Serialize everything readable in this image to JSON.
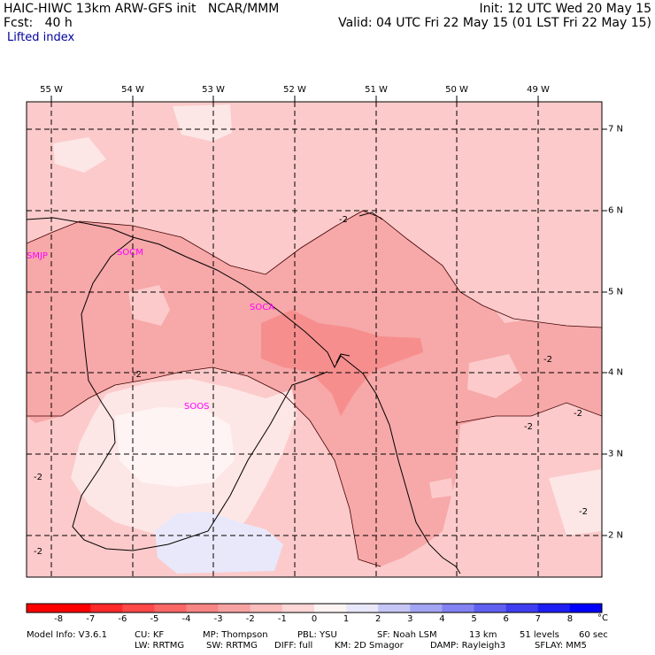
{
  "header": {
    "line1_left": "HAIC-HIWC 13km ARW-GFS init   NCAR/MMM",
    "line2_left": "Fcst:   40 h",
    "line1_right": "Init: 12 UTC Wed 20 May 15",
    "line2_right": "Valid: 04 UTC Fri 22 May 15 (01 LST Fri 22 May 15)",
    "field_name": "Lifted index"
  },
  "map": {
    "longitude_labels": [
      "55 W",
      "54 W",
      "53 W",
      "52 W",
      "51 W",
      "50 W",
      "49 W"
    ],
    "latitude_labels": [
      "7 N",
      "6 N",
      "5 N",
      "4 N",
      "3 N",
      "2 N"
    ],
    "stations": [
      "SMJP",
      "SOCM",
      "SOCA",
      "SOOS"
    ],
    "contour_label": "-2",
    "colors": {
      "minus3_to_minus2": "#f7a8a8",
      "minus2_to_minus1": "#fccaca",
      "minus1_to_0": "#fde6e6",
      "zero_to_1": "#fff4f4",
      "one_to_2": "#e8e8fa",
      "boundary": "#000000",
      "station_label": "#ff00ff"
    }
  },
  "colorbar": {
    "tick_labels": [
      "-8",
      "-7",
      "-6",
      "-5",
      "-4",
      "-3",
      "-2",
      "-1",
      "0",
      "1",
      "2",
      "3",
      "4",
      "5",
      "6",
      "7",
      "8"
    ],
    "unit": "°C",
    "colors": [
      "#ff0000",
      "#ff2a2a",
      "#ff4848",
      "#fb6767",
      "#f78585",
      "#f7a2a2",
      "#fbbcbc",
      "#fdd6d6",
      "#fff4f4",
      "#e8e8fa",
      "#c6c6f6",
      "#a4a4f4",
      "#8282f2",
      "#6060f0",
      "#3e3ef0",
      "#1e1ef4",
      "#0000ff"
    ]
  },
  "footer": {
    "line1": [
      "Model Info: V3.6.1",
      "CU: KF",
      "MP: Thompson",
      "PBL: YSU",
      "SF: Noah LSM",
      "13 km",
      "51 levels",
      "60 sec"
    ],
    "line2": [
      "LW: RRTMG",
      "SW: RRTMG",
      "DIFF: full",
      "KM: 2D Smagor",
      "DAMP: Rayleigh3",
      "SFLAY: MM5"
    ]
  }
}
